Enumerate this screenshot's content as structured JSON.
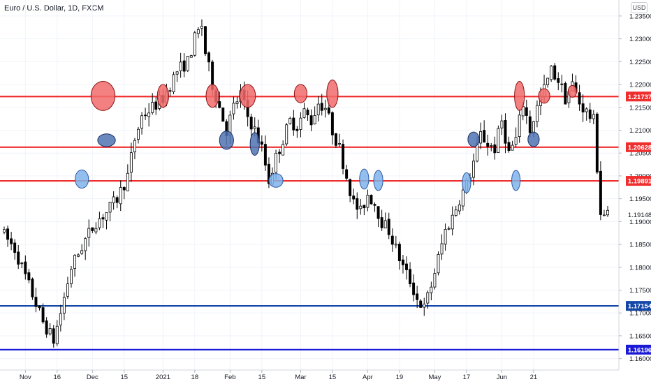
{
  "header": {
    "title": "Euro / U.S. Dollar, 1D, FXCM",
    "unit": "USD"
  },
  "chart_data": {
    "type": "candlestick",
    "title": "Euro / U.S. Dollar, 1D, FXCM",
    "ylim": [
      1.1575,
      1.2385
    ],
    "y_ticks": [
      "1.23500",
      "1.23000",
      "1.22500",
      "1.22000",
      "1.21500",
      "1.21000",
      "1.20500",
      "1.20000",
      "1.19500",
      "1.19000",
      "1.18500",
      "1.18000",
      "1.17500",
      "1.17000",
      "1.16500",
      "1.16000"
    ],
    "x_ticks": [
      "Nov",
      "16",
      "Dec",
      "15",
      "2021",
      "18",
      "Feb",
      "15",
      "Mar",
      "15",
      "Apr",
      "19",
      "May",
      "17",
      "Jun",
      "21"
    ],
    "grid": true,
    "level_lines": [
      {
        "label": "1.21737",
        "value": 1.21737,
        "color": "#ef2e2e"
      },
      {
        "label": "1.20628",
        "value": 1.20628,
        "color": "#ef2e2e"
      },
      {
        "label": "1.19891",
        "value": 1.19891,
        "color": "#ef2e2e"
      },
      {
        "label": "1.17154",
        "value": 1.17154,
        "color": "#1448a8"
      },
      {
        "label": "1.16196",
        "value": 1.16196,
        "color": "#1a1ad6"
      }
    ],
    "last_price": {
      "label": "1.19148",
      "value": 1.19148
    },
    "highlight_circles": [
      {
        "kind": "resistance",
        "x_day": 28,
        "y": 1.2175,
        "rx_days": 3.4,
        "ry": 0.0032
      },
      {
        "kind": "resistance",
        "x_day": 45,
        "y": 1.2175,
        "rx_days": 1.6,
        "ry": 0.0025
      },
      {
        "kind": "resistance",
        "x_day": 59,
        "y": 1.2175,
        "rx_days": 1.8,
        "ry": 0.0025
      },
      {
        "kind": "resistance",
        "x_day": 69,
        "y": 1.2175,
        "rx_days": 2.2,
        "ry": 0.0025
      },
      {
        "kind": "resistance",
        "x_day": 84,
        "y": 1.218,
        "rx_days": 1.8,
        "ry": 0.002
      },
      {
        "kind": "resistance",
        "x_day": 93,
        "y": 1.218,
        "rx_days": 1.6,
        "ry": 0.003
      },
      {
        "kind": "resistance",
        "x_day": 146,
        "y": 1.2175,
        "rx_days": 1.4,
        "ry": 0.0032
      },
      {
        "kind": "resistance",
        "x_day": 153,
        "y": 1.2175,
        "rx_days": 1.6,
        "ry": 0.0016
      },
      {
        "kind": "resistance",
        "x_day": 161,
        "y": 1.2185,
        "rx_days": 1.2,
        "ry": 0.0013
      },
      {
        "kind": "resistance-support",
        "x_day": 70,
        "y": 1.2025,
        "rx_days": 0,
        "ry": 0
      },
      {
        "kind": "support",
        "x_day": 29,
        "y": 1.2078,
        "rx_days": 2.5,
        "ry": 0.0014
      },
      {
        "kind": "support",
        "x_day": 63,
        "y": 1.2078,
        "rx_days": 2.0,
        "ry": 0.002
      },
      {
        "kind": "support",
        "x_day": 71,
        "y": 1.207,
        "rx_days": 1.3,
        "ry": 0.0025
      },
      {
        "kind": "support",
        "x_day": 133,
        "y": 1.208,
        "rx_days": 1.6,
        "ry": 0.0016
      },
      {
        "kind": "support",
        "x_day": 150,
        "y": 1.208,
        "rx_days": 1.6,
        "ry": 0.0016
      },
      {
        "kind": "support",
        "x_day": 22,
        "y": 1.1993,
        "rx_days": 1.9,
        "ry": 0.002
      },
      {
        "kind": "support",
        "x_day": 77,
        "y": 1.199,
        "rx_days": 2.0,
        "ry": 0.0015
      },
      {
        "kind": "support",
        "x_day": 102,
        "y": 1.1993,
        "rx_days": 1.3,
        "ry": 0.0022
      },
      {
        "kind": "support",
        "x_day": 106,
        "y": 1.199,
        "rx_days": 1.3,
        "ry": 0.0022
      },
      {
        "kind": "support",
        "x_day": 131,
        "y": 1.1985,
        "rx_days": 1.2,
        "ry": 0.0022
      },
      {
        "kind": "support",
        "x_day": 145,
        "y": 1.199,
        "rx_days": 1.2,
        "ry": 0.0022
      }
    ],
    "candles": []
  }
}
